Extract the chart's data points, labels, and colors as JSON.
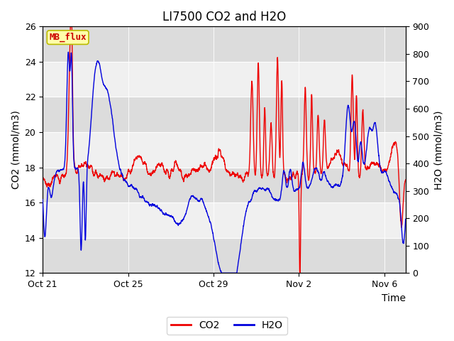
{
  "title": "LI7500 CO2 and H2O",
  "xlabel": "Time",
  "ylabel_left": "CO2 (mmol/m3)",
  "ylabel_right": "H2O (mmol/m3)",
  "ylim_left": [
    12,
    26
  ],
  "ylim_right": [
    0,
    900
  ],
  "yticks_left": [
    12,
    14,
    16,
    18,
    20,
    22,
    24,
    26
  ],
  "yticks_right": [
    0,
    100,
    200,
    300,
    400,
    500,
    600,
    700,
    800,
    900
  ],
  "xtick_labels": [
    "Oct 21",
    "Oct 25",
    "Oct 29",
    "Nov 2",
    "Nov 6"
  ],
  "xtick_pos": [
    0,
    4,
    8,
    12,
    16
  ],
  "xlim": [
    0,
    17
  ],
  "co2_color": "#EE0000",
  "h2o_color": "#0000DD",
  "background_color": "#FFFFFF",
  "plot_bg_dark": "#DCDCDC",
  "plot_bg_light": "#F0F0F0",
  "legend_co2": "CO2",
  "legend_h2o": "H2O",
  "mb_flux_label": "MB_flux",
  "mb_flux_bg": "#FFFFAA",
  "mb_flux_border": "#BBBB00",
  "mb_flux_text_color": "#CC0000",
  "title_fontsize": 12,
  "label_fontsize": 10,
  "tick_fontsize": 9,
  "legend_fontsize": 10,
  "line_width": 1.0
}
